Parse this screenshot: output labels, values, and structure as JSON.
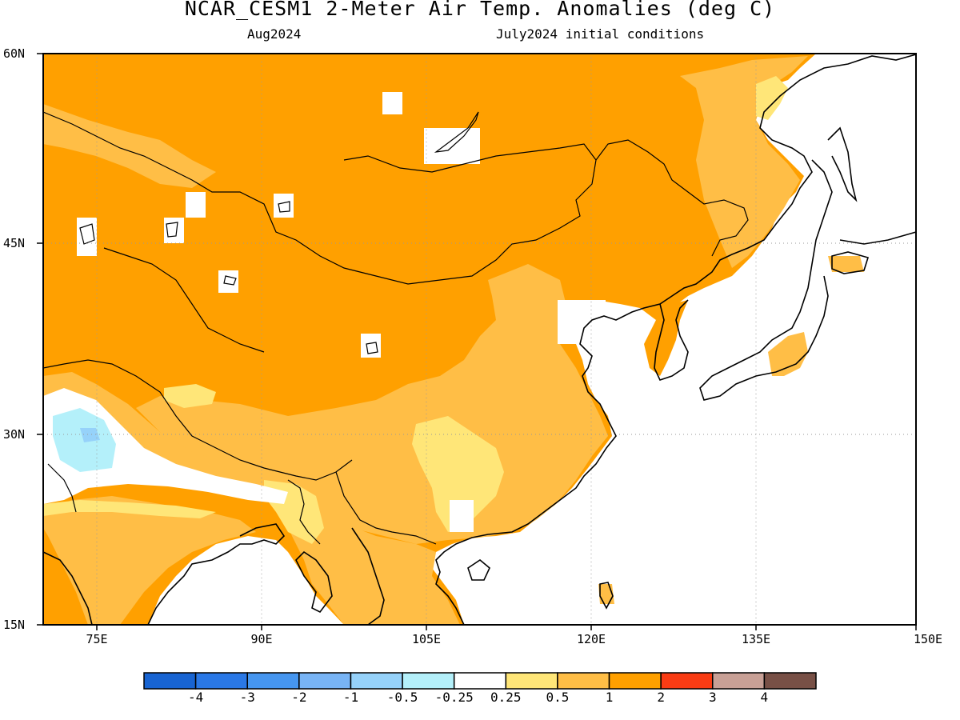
{
  "title": "NCAR_CESM1 2-Meter Air Temp. Anomalies (deg C)",
  "subtitle_left": "Aug2024",
  "subtitle_right": "July2024 initial conditions",
  "lat_labels": [
    "60N",
    "45N",
    "30N",
    "15N"
  ],
  "lon_labels": [
    "75E",
    "90E",
    "105E",
    "120E",
    "135E",
    "150E"
  ],
  "map_extent": {
    "lon_min": 70,
    "lon_max": 150,
    "lat_min": 15,
    "lat_max": 60
  },
  "colorbar": {
    "colors": [
      "#1864d2",
      "#2a78e6",
      "#4696f0",
      "#78b4f5",
      "#96d2fa",
      "#b4f0fa",
      "#ffffff",
      "#ffe678",
      "#ffbe46",
      "#ffa000",
      "#fa3c14",
      "#c8a096",
      "#785046"
    ],
    "labels": [
      "-4",
      "-3",
      "-2",
      "-1",
      "-0.5",
      "-0.25",
      "0.25",
      "0.5",
      "1",
      "2",
      "3",
      "4"
    ]
  },
  "fill_colors": {
    "anom_1_2": "#ffa000",
    "anom_0_5_1": "#ffbe46",
    "anom_0_25_0_5": "#ffe678",
    "anom_neg_0_5_neg_0_25": "#b4f0fa",
    "anom_neg_1_neg_0_5": "#96d2fa",
    "ocean": "#ffffff"
  }
}
